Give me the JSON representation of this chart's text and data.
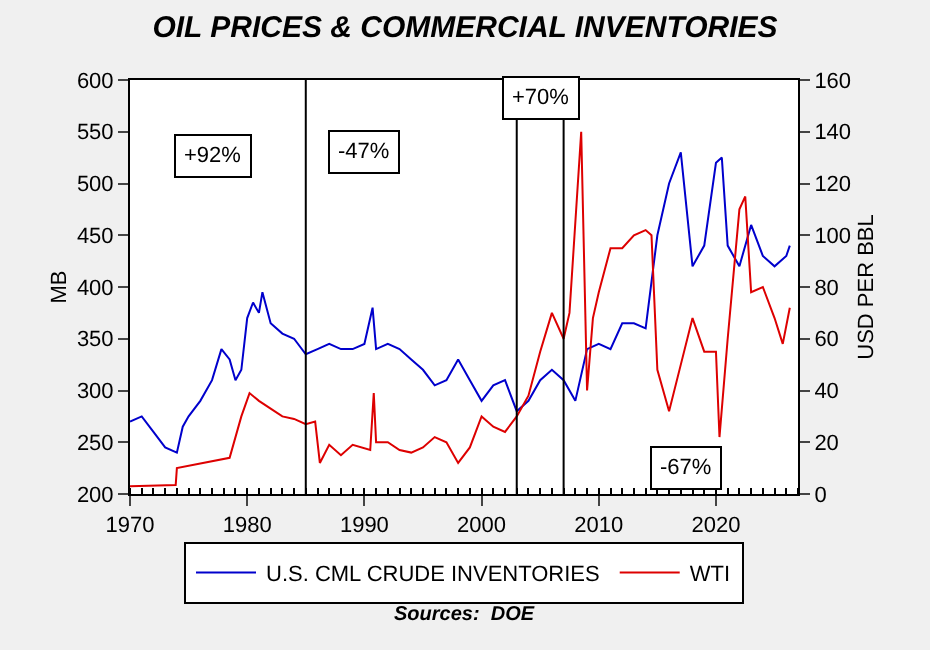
{
  "chart_data": {
    "type": "line",
    "title": "OIL PRICES & COMMERCIAL INVENTORIES",
    "ylabel": "MB",
    "y2label": "USD PER BBL",
    "xlim": [
      1970,
      2027
    ],
    "xticks": [
      1970,
      1980,
      1990,
      2000,
      2010,
      2020
    ],
    "ylim": [
      200,
      600
    ],
    "yticks": [
      200,
      250,
      300,
      350,
      400,
      450,
      500,
      550,
      600
    ],
    "y2lim": [
      0,
      160
    ],
    "y2ticks": [
      0,
      20,
      40,
      60,
      80,
      100,
      120,
      140,
      160
    ],
    "grid": false,
    "legend": "bottom",
    "marker": "none",
    "line_style": "solid",
    "series": [
      {
        "name": "U.S. CML CRUDE INVENTORIES",
        "color": "#0000cc",
        "axis": "y",
        "x": [
          1970,
          1971,
          1972,
          1973,
          1974,
          1974.5,
          1975,
          1976,
          1977,
          1977.8,
          1978.5,
          1979,
          1979.5,
          1980,
          1980.5,
          1981,
          1981.3,
          1982,
          1983,
          1984,
          1985,
          1986,
          1987,
          1988,
          1989,
          1990,
          1990.7,
          1991,
          1992,
          1993,
          1994,
          1995,
          1996,
          1997,
          1998,
          1999,
          2000,
          2001,
          2002,
          2003,
          2004,
          2005,
          2006,
          2007,
          2008,
          2009,
          2010,
          2011,
          2012,
          2013,
          2014,
          2015,
          2016,
          2017,
          2018,
          2019,
          2020,
          2020.5,
          2021,
          2022,
          2023,
          2024,
          2025,
          2026,
          2026.3
        ],
        "values": [
          270,
          275,
          260,
          245,
          240,
          265,
          275,
          290,
          310,
          340,
          330,
          310,
          320,
          370,
          385,
          375,
          395,
          365,
          355,
          350,
          335,
          340,
          345,
          340,
          340,
          345,
          380,
          340,
          345,
          340,
          330,
          320,
          305,
          310,
          330,
          310,
          290,
          305,
          310,
          280,
          290,
          310,
          320,
          310,
          290,
          340,
          345,
          340,
          365,
          365,
          360,
          450,
          500,
          530,
          420,
          440,
          520,
          525,
          440,
          420,
          460,
          430,
          420,
          430,
          440
        ]
      },
      {
        "name": "WTI",
        "color": "#dd0000",
        "axis": "y2",
        "x": [
          1970,
          1973.9,
          1974,
          1978.5,
          1979.5,
          1980.2,
          1981,
          1982,
          1983,
          1984,
          1985,
          1985.8,
          1986.2,
          1987,
          1988,
          1989,
          1990.5,
          1990.8,
          1991,
          1992,
          1993,
          1994,
          1995,
          1996,
          1997,
          1998,
          1999,
          2000,
          2001,
          2002,
          2003,
          2004,
          2005,
          2006,
          2007,
          2007.5,
          2008.5,
          2009,
          2009.5,
          2010,
          2011,
          2012,
          2013,
          2014,
          2014.5,
          2015,
          2016,
          2017,
          2018,
          2019,
          2020,
          2020.3,
          2021,
          2022,
          2022.5,
          2023,
          2024,
          2025,
          2025.7,
          2026.3
        ],
        "values": [
          3,
          3.5,
          10,
          14,
          30,
          39,
          36,
          33,
          30,
          29,
          27,
          28,
          12,
          19,
          15,
          19,
          17,
          39,
          20,
          20,
          17,
          16,
          18,
          22,
          20,
          12,
          18,
          30,
          26,
          24,
          30,
          38,
          55,
          70,
          60,
          70,
          140,
          40,
          68,
          78,
          95,
          95,
          100,
          102,
          100,
          48,
          32,
          50,
          68,
          55,
          55,
          22,
          60,
          110,
          115,
          78,
          80,
          68,
          58,
          72
        ]
      }
    ],
    "ref_lines": [
      {
        "axis": "x",
        "value": 1985,
        "color": "#000000"
      },
      {
        "axis": "x",
        "value": 2003,
        "color": "#000000"
      },
      {
        "axis": "x",
        "value": 2007,
        "color": "#000000"
      }
    ],
    "annotations": [
      {
        "text": "+92%",
        "x": 1977,
        "y": 527
      },
      {
        "text": "-47%",
        "x": 1990,
        "y": 530
      },
      {
        "text": "+70%",
        "x": 2005,
        "y": 582
      },
      {
        "text": "-67%",
        "x": 2017.5,
        "y": 226
      },
      "Sources:  DOE"
    ]
  }
}
